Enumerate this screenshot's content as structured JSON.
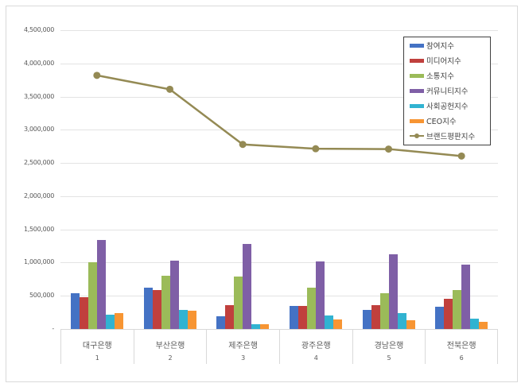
{
  "chart_data": {
    "type": "bar+line",
    "title": "",
    "xlabel": "",
    "ylabel": "",
    "ylim": [
      0,
      4500000
    ],
    "yticks": [
      "-",
      "500,000",
      "1,000,000",
      "1,500,000",
      "2,000,000",
      "2,500,000",
      "3,000,000",
      "3,500,000",
      "4,000,000",
      "4,500,000"
    ],
    "grid": true,
    "legend_position": "top-right inside",
    "categories": [
      "대구은행",
      "부산은행",
      "제주은행",
      "광주은행",
      "경남은행",
      "전북은행"
    ],
    "category_numbers": [
      "1",
      "2",
      "3",
      "4",
      "5",
      "6"
    ],
    "series": [
      {
        "name": "참여지수",
        "type": "bar",
        "color": "#4472c4",
        "values": [
          540000,
          625000,
          195000,
          350000,
          285000,
          335000
        ]
      },
      {
        "name": "미디어지수",
        "type": "bar",
        "color": "#c0403d",
        "values": [
          480000,
          590000,
          360000,
          350000,
          360000,
          455000
        ]
      },
      {
        "name": "소통지수",
        "type": "bar",
        "color": "#9bbb59",
        "values": [
          1000000,
          805000,
          795000,
          625000,
          540000,
          585000
        ]
      },
      {
        "name": "커뮤니티지수",
        "type": "bar",
        "color": "#7f5fa6",
        "values": [
          1345000,
          1030000,
          1275000,
          1020000,
          1130000,
          975000
        ]
      },
      {
        "name": "사회공헌지수",
        "type": "bar",
        "color": "#31b3d1",
        "values": [
          215000,
          290000,
          75000,
          205000,
          240000,
          155000
        ]
      },
      {
        "name": "CEO지수",
        "type": "bar",
        "color": "#f79533",
        "values": [
          240000,
          275000,
          75000,
          145000,
          130000,
          110000
        ]
      },
      {
        "name": "브랜드평판지수",
        "type": "line",
        "color": "#948a54",
        "values": [
          3820000,
          3610000,
          2780000,
          2715000,
          2710000,
          2605000
        ]
      }
    ]
  }
}
